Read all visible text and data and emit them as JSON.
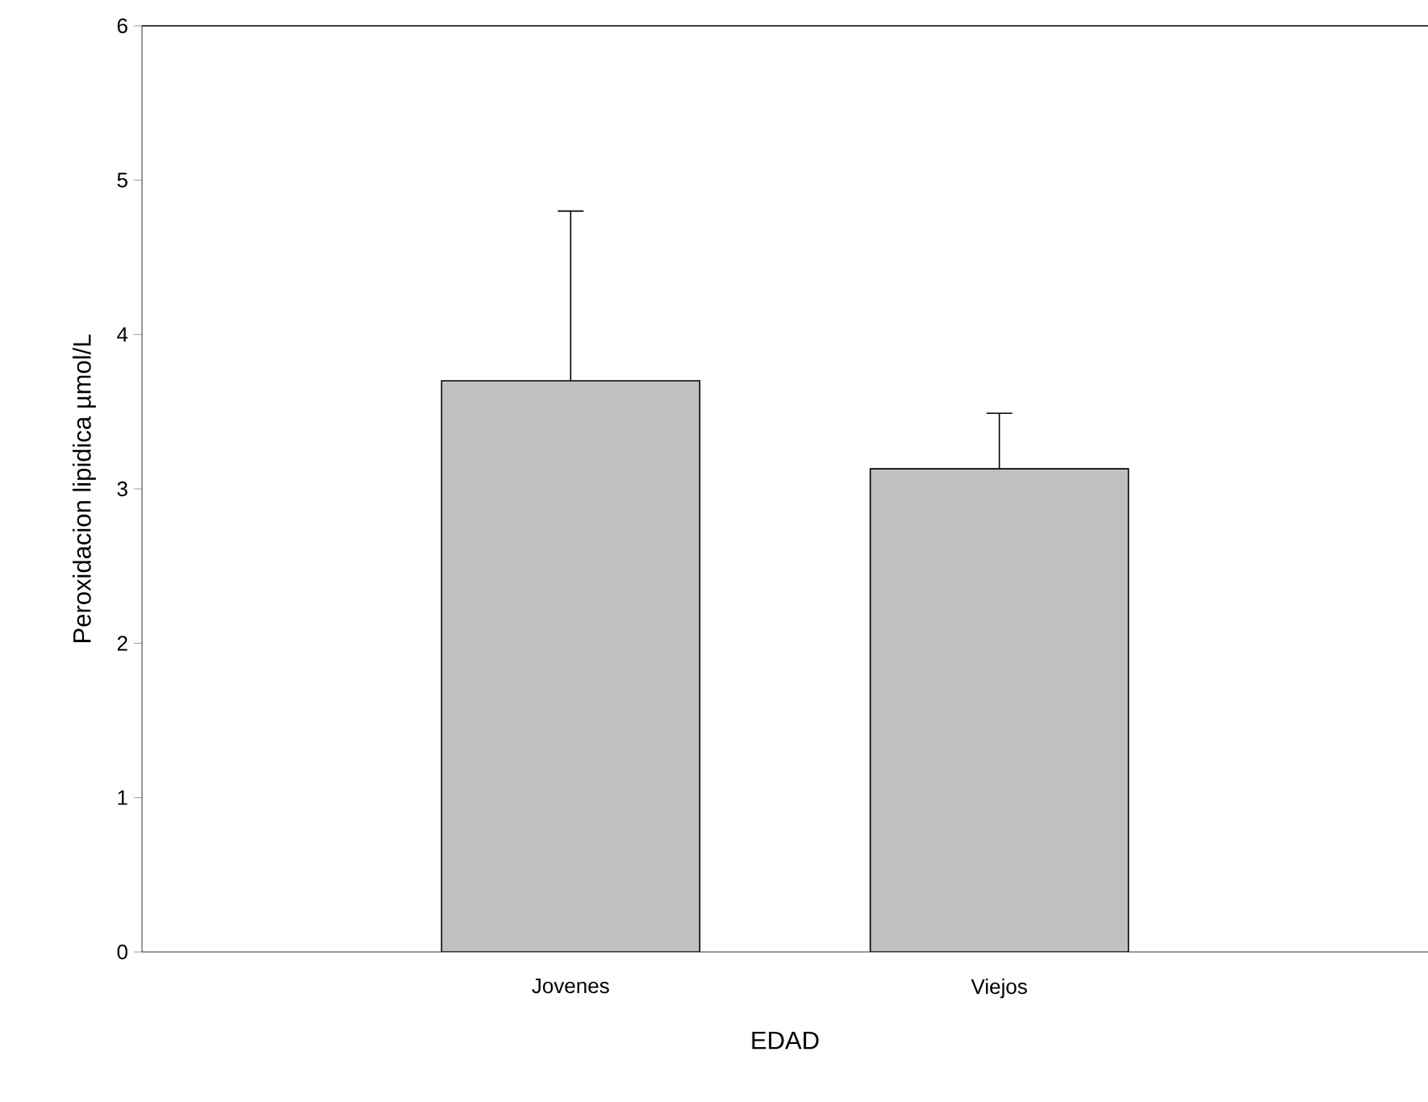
{
  "chart_data": {
    "type": "bar",
    "xlabel": "EDAD",
    "ylabel": "Peroxidacion lipidica µmol/L",
    "categories": [
      "Jovenes",
      "Viejos"
    ],
    "values": [
      3.7,
      3.13
    ],
    "errors": [
      [
        3.7,
        4.8
      ],
      [
        3.13,
        3.49
      ]
    ],
    "color": "#c0c0c0",
    "ylim": [
      0,
      6
    ],
    "yticks": [
      0,
      1,
      2,
      3,
      4,
      5,
      6
    ]
  }
}
